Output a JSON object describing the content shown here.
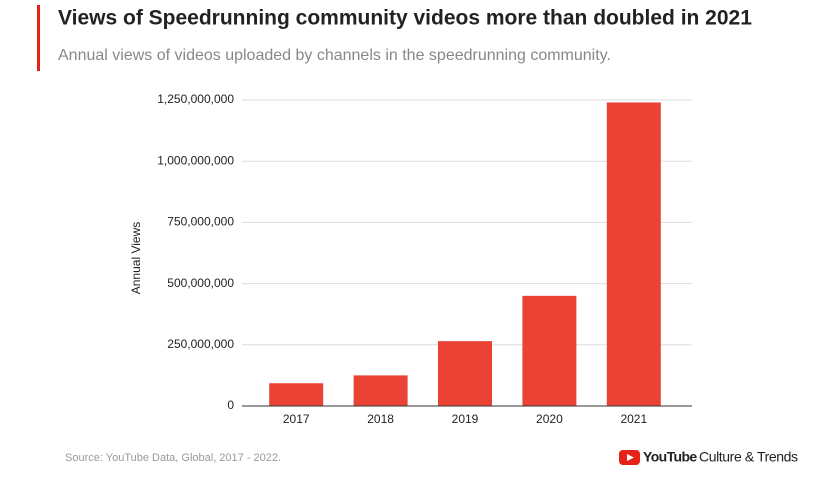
{
  "chart_data": {
    "type": "bar",
    "title": "Views of Speedrunning community videos more than doubled in 2021",
    "subtitle": "Annual views of videos uploaded by channels in the speedrunning community.",
    "y_label": "Annual Views",
    "categories": [
      "2017",
      "2018",
      "2019",
      "2020",
      "2021"
    ],
    "values": [
      93000000,
      125000000,
      265000000,
      450000000,
      1240000000
    ],
    "color": "#ea4335",
    "ylim": [
      0,
      1250000000
    ],
    "yticks": [
      0,
      {
        "value": 250000000,
        "label": "250,000,000"
      },
      {
        "value": 500000000,
        "label": "500,000,000"
      },
      {
        "value": 750000000,
        "label": "750,000,000"
      },
      {
        "value": 1000000000,
        "label": "1,000,000,000"
      },
      {
        "value": 1250000000,
        "label": "1,250,000,000"
      }
    ],
    "grid": true,
    "source": "Source: YouTube Data, Global, 2017 - 2022.",
    "brand": "YouTube",
    "brand_suffix": "Culture & Trends"
  }
}
